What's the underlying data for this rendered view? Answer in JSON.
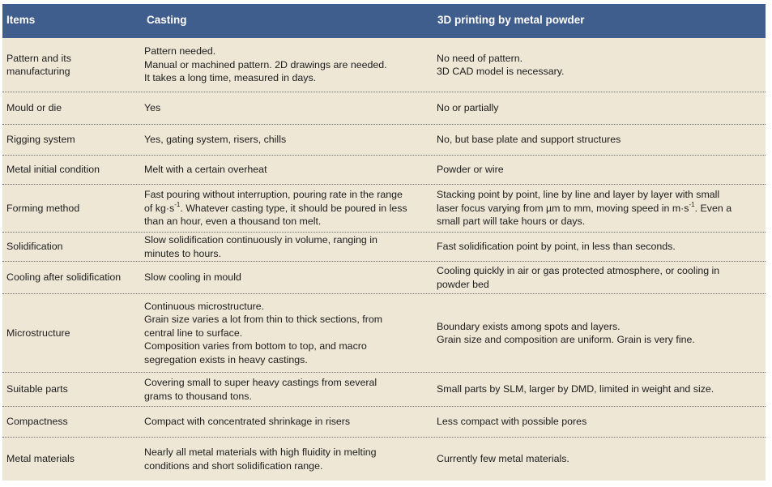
{
  "headers": [
    "Items",
    "Casting",
    "3D printing by metal powder"
  ],
  "rows": [
    {
      "item": [
        "Pattern and its",
        "manufacturing"
      ],
      "casting": [
        "Pattern needed.",
        "Manual or machined pattern. 2D drawings are needed.",
        "It takes a long time, measured in days."
      ],
      "printing": [
        "No need of pattern.",
        "3D CAD model is necessary."
      ]
    },
    {
      "item": [
        "Mould or die"
      ],
      "casting": [
        "Yes"
      ],
      "printing": [
        "No or partially"
      ]
    },
    {
      "item": [
        "Rigging system"
      ],
      "casting": [
        "Yes, gating system, risers, chills"
      ],
      "printing": [
        "No, but base plate and support structures"
      ]
    },
    {
      "item": [
        "Metal initial condition"
      ],
      "casting": [
        "Melt with a certain overheat"
      ],
      "printing": [
        "Powder or wire"
      ]
    },
    {
      "item": [
        "Forming method"
      ],
      "casting": [
        "Fast pouring without interruption, pouring rate in the range",
        "of kg·s^-1. Whatever casting type, it should be poured in less",
        "than an hour, even a thousand ton melt."
      ],
      "printing": [
        "Stacking point by point, line by line and layer by layer with small",
        "laser focus varying from µm to mm, moving speed in m·s^-1. Even a",
        "small part will take hours or days."
      ]
    },
    {
      "item": [
        "Solidification"
      ],
      "casting": [
        "Slow solidification continuously in volume, ranging in",
        "minutes to hours."
      ],
      "printing": [
        "Fast solidification point by point, in less than seconds."
      ]
    },
    {
      "item": [
        "Cooling after solidification"
      ],
      "casting": [
        "Slow cooling in mould"
      ],
      "printing": [
        "Cooling quickly in air or gas protected atmosphere, or cooling in",
        "powder bed"
      ]
    },
    {
      "item": [
        "Microstructure"
      ],
      "casting": [
        "Continuous microstructure.",
        "Grain size varies a lot from thin to thick sections, from",
        "central line to surface.",
        "Composition varies from bottom to top, and macro",
        "segregation exists in heavy castings."
      ],
      "printing": [
        "Boundary exists among spots and layers.",
        "Grain size and composition are uniform. Grain is very fine."
      ]
    },
    {
      "item": [
        "Suitable parts"
      ],
      "casting": [
        "Covering small to super heavy castings from several",
        "grams to thousand tons."
      ],
      "printing": [
        "Small parts by SLM, larger by DMD, limited in weight and size."
      ]
    },
    {
      "item": [
        "Compactness"
      ],
      "casting": [
        "Compact with concentrated shrinkage in risers"
      ],
      "printing": [
        "Less compact with possible pores"
      ]
    },
    {
      "item": [
        "Metal materials"
      ],
      "casting": [
        "Nearly all metal materials with high fluidity in melting",
        "conditions and short solidification range."
      ],
      "printing": [
        "Currently few metal materials."
      ]
    }
  ]
}
